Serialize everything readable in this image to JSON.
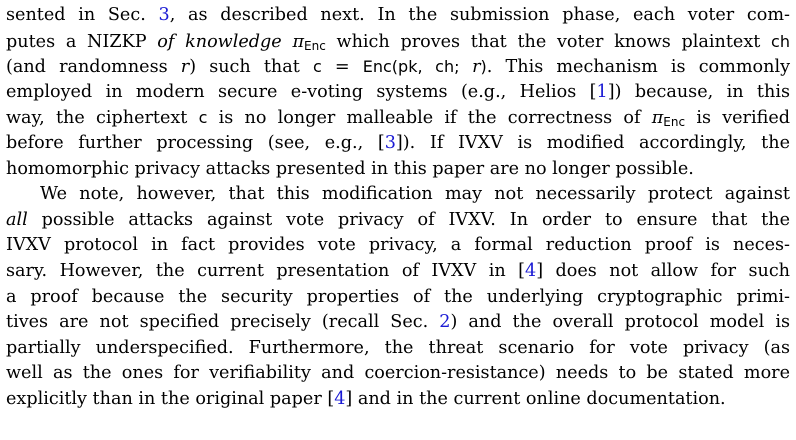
{
  "paragraph1": {
    "l1": {
      "a": "sented in Sec. ",
      "ref": "3",
      "b": ", as described next. In the submission phase, each voter com-"
    },
    "l2": {
      "a": "putes a NIZKP ",
      "em": "of knowledge",
      "pi": "π",
      "sub": "Enc",
      "b": " which proves that the voter knows plaintext ",
      "ch": "ch"
    },
    "l3": {
      "a": "(and randomness ",
      "r": "r",
      "b": ") such that ",
      "c": "c",
      "eq": " = ",
      "enc": "Enc(pk, ch; ",
      "r2": "r",
      "close": ")",
      "d": ". This mechanism is commonly"
    },
    "l4": {
      "a": "employed in modern secure e-voting systems (e.g., Helios [",
      "ref": "1",
      "b": "]) because, in this"
    },
    "l5": {
      "a": "way, the ciphertext ",
      "c": "c",
      "b": " is no longer malleable if the correctness of ",
      "pi": "π",
      "sub": "Enc",
      "d": " is verified"
    },
    "l6": {
      "a": "before further processing (see, e.g., [",
      "ref": "3",
      "b": "]). If IVXV is modified accordingly, the"
    },
    "l7": "homomorphic privacy attacks presented in this paper are no longer possible."
  },
  "paragraph2": {
    "l1": "We note, however, that this modification may not necessarily protect against",
    "l2": {
      "em": "all",
      "b": " possible attacks against vote privacy of IVXV. In order to ensure that the"
    },
    "l3": "IVXV protocol in fact provides vote privacy, a formal reduction proof is neces-",
    "l4": {
      "a": "sary. However, the current presentation of IVXV in [",
      "ref": "4",
      "b": "] does not allow for such"
    },
    "l5": "a proof because the security properties of the underlying cryptographic primi-",
    "l6": {
      "a": "tives are not specified precisely (recall Sec. ",
      "ref": "2",
      "b": ") and the overall protocol model is"
    },
    "l7": "partially underspecified. Furthermore, the threat scenario for vote privacy (as",
    "l8": "well as the ones for verifiability and coercion-resistance) needs to be stated more",
    "l9": {
      "a": "explicitly than in the original paper [",
      "ref": "4",
      "b": "] and in the current online documentation."
    }
  },
  "colors": {
    "text": "#000000",
    "link": "#1a1ad4",
    "background": "#ffffff"
  }
}
